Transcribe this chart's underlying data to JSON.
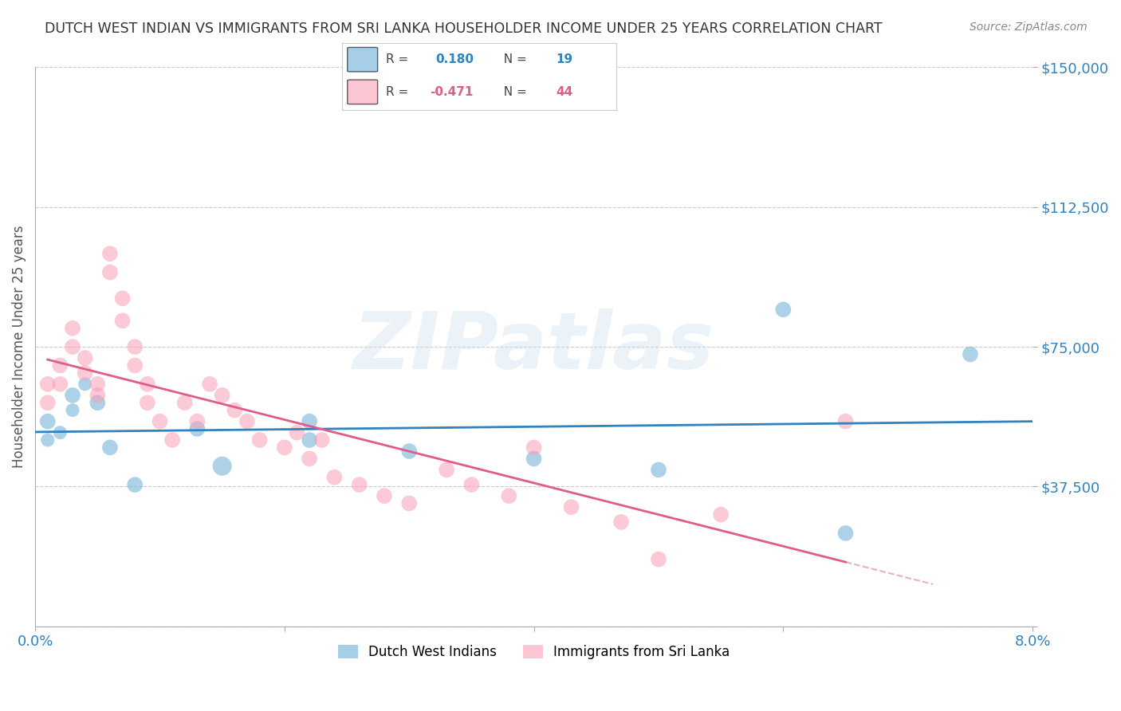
{
  "title": "DUTCH WEST INDIAN VS IMMIGRANTS FROM SRI LANKA HOUSEHOLDER INCOME UNDER 25 YEARS CORRELATION CHART",
  "source": "Source: ZipAtlas.com",
  "ylabel": "Householder Income Under 25 years",
  "xlim": [
    0.0,
    0.08
  ],
  "ylim": [
    0,
    150000
  ],
  "ytick_vals": [
    0,
    37500,
    75000,
    112500,
    150000
  ],
  "ytick_labels": [
    "",
    "$37,500",
    "$75,000",
    "$112,500",
    "$150,000"
  ],
  "xtick_vals": [
    0.0,
    0.02,
    0.04,
    0.06,
    0.08
  ],
  "xtick_labels": [
    "0.0%",
    "",
    "",
    "",
    "8.0%"
  ],
  "watermark": "ZIPatlas",
  "blue_color": "#6baed6",
  "pink_color": "#fa9fb5",
  "blue_line_color": "#3182bd",
  "pink_line_color": "#e05c8a",
  "title_color": "#333333",
  "background_color": "#ffffff",
  "grid_color": "#cccccc",
  "dutch_x": [
    0.001,
    0.001,
    0.002,
    0.003,
    0.003,
    0.004,
    0.005,
    0.013,
    0.015,
    0.022,
    0.022,
    0.03,
    0.04,
    0.05,
    0.06,
    0.065,
    0.075,
    0.006,
    0.008
  ],
  "dutch_y": [
    55000,
    50000,
    52000,
    62000,
    58000,
    65000,
    60000,
    53000,
    43000,
    50000,
    55000,
    47000,
    45000,
    42000,
    85000,
    25000,
    73000,
    48000,
    38000
  ],
  "dutch_size": [
    200,
    150,
    150,
    200,
    150,
    150,
    200,
    200,
    300,
    200,
    200,
    200,
    200,
    200,
    200,
    200,
    200,
    200,
    200
  ],
  "srilanka_x": [
    0.001,
    0.001,
    0.002,
    0.002,
    0.003,
    0.003,
    0.004,
    0.004,
    0.005,
    0.005,
    0.006,
    0.006,
    0.007,
    0.007,
    0.008,
    0.008,
    0.009,
    0.009,
    0.01,
    0.011,
    0.012,
    0.013,
    0.014,
    0.015,
    0.016,
    0.017,
    0.018,
    0.02,
    0.021,
    0.022,
    0.023,
    0.024,
    0.026,
    0.028,
    0.03,
    0.033,
    0.035,
    0.038,
    0.04,
    0.043,
    0.047,
    0.05,
    0.055,
    0.065
  ],
  "srilanka_y": [
    65000,
    60000,
    70000,
    65000,
    80000,
    75000,
    72000,
    68000,
    65000,
    62000,
    100000,
    95000,
    88000,
    82000,
    75000,
    70000,
    65000,
    60000,
    55000,
    50000,
    60000,
    55000,
    65000,
    62000,
    58000,
    55000,
    50000,
    48000,
    52000,
    45000,
    50000,
    40000,
    38000,
    35000,
    33000,
    42000,
    38000,
    35000,
    48000,
    32000,
    28000,
    18000,
    30000,
    55000
  ],
  "srilanka_size": [
    200,
    200,
    200,
    200,
    200,
    200,
    200,
    200,
    200,
    200,
    200,
    200,
    200,
    200,
    200,
    200,
    200,
    200,
    200,
    200,
    200,
    200,
    200,
    200,
    200,
    200,
    200,
    200,
    200,
    200,
    200,
    200,
    200,
    200,
    200,
    200,
    200,
    200,
    200,
    200,
    200,
    200,
    200,
    200
  ],
  "legend_r1_label": "R = ",
  "legend_r1_val": "0.180",
  "legend_r1_n": "N = ",
  "legend_r1_nval": "19",
  "legend_r2_label": "R = ",
  "legend_r2_val": "-0.471",
  "legend_r2_n": "N = ",
  "legend_r2_nval": "44",
  "bottom_legend_labels": [
    "Dutch West Indians",
    "Immigrants from Sri Lanka"
  ]
}
